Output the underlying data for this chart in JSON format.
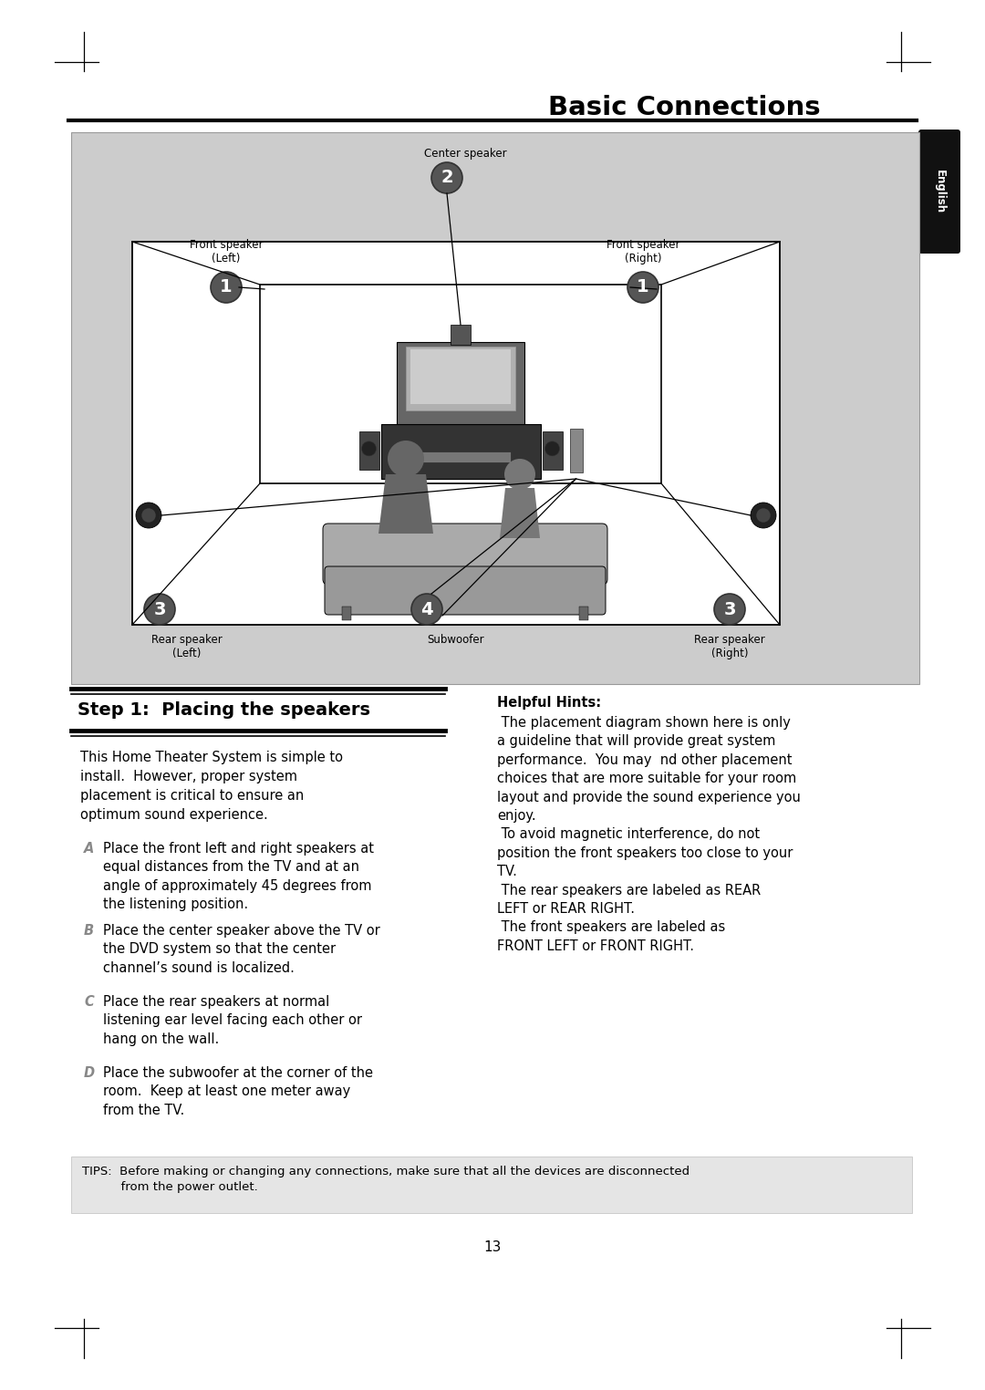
{
  "title": "Basic Connections",
  "page_number": "13",
  "bg_color": "#ffffff",
  "diagram_bg": "#cccccc",
  "english_tab_color": "#1a1a1a",
  "step_heading": "Step 1:  Placing the speakers",
  "intro_text": "This Home Theater System is simple to\ninstall.  However, proper system\nplacement is critical to ensure an\noptimum sound experience.",
  "items": [
    {
      "label": "A",
      "text": "Place the front left and right speakers at\nequal distances from the TV and at an\nangle of approximately 45 degrees from\nthe listening position."
    },
    {
      "label": "B",
      "text": "Place the center speaker above the TV or\nthe DVD system so that the center\nchannel’s sound is localized."
    },
    {
      "label": "C",
      "text": "Place the rear speakers at normal\nlistening ear level facing each other or\nhang on the wall."
    },
    {
      "label": "D",
      "text": "Place the subwoofer at the corner of the\nroom.  Keep at least one meter away\nfrom the TV."
    }
  ],
  "hints_title": "Helpful Hints:",
  "hints_lines": [
    " The placement diagram shown here is only",
    "a guideline that will provide great system",
    "performance.  You may  nd other placement",
    "choices that are more suitable for your room",
    "layout and provide the sound experience you",
    "enjoy.",
    " To avoid magnetic interference, do not",
    "position the front speakers too close to your",
    "TV.",
    " The rear speakers are labeled as REAR",
    "LEFT or REAR RIGHT.",
    " The front speakers are labeled as",
    "FRONT LEFT or FRONT RIGHT."
  ],
  "tips_text": "TIPS:  Before making or changing any connections, make sure that all the devices are disconnected\n          from the power outlet.",
  "dark_gray": "#555555",
  "mid_gray": "#888888",
  "light_gray": "#aaaaaa",
  "couch_color": "#999999",
  "person_color": "#777777"
}
